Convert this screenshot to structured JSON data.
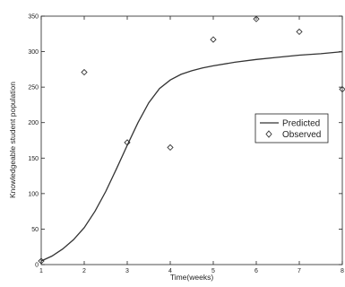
{
  "chart_data": {
    "type": "line",
    "title": "",
    "xlabel": "Time(weeks)",
    "ylabel": "Knowledgeable student population",
    "xlim": [
      1,
      8
    ],
    "ylim": [
      0,
      350
    ],
    "xticks": [
      "1",
      "2",
      "3",
      "4",
      "5",
      "6",
      "7",
      "8"
    ],
    "yticks": [
      "0",
      "50",
      "100",
      "150",
      "200",
      "250",
      "300",
      "350"
    ],
    "grid": false,
    "legend_position": "right",
    "series": [
      {
        "name": "Predicted",
        "style": "line",
        "color": "#333333",
        "x": [
          1,
          1.25,
          1.5,
          1.75,
          2,
          2.25,
          2.5,
          2.75,
          3,
          3.25,
          3.5,
          3.75,
          4,
          4.25,
          4.5,
          4.75,
          5,
          5.5,
          6,
          6.5,
          7,
          7.5,
          8
        ],
        "y": [
          5,
          12,
          22,
          35,
          52,
          75,
          103,
          135,
          168,
          200,
          228,
          248,
          260,
          268,
          273,
          277,
          280,
          285,
          289,
          292,
          295,
          297,
          300
        ]
      },
      {
        "name": "Observed",
        "style": "marker",
        "marker": "diamond",
        "color": "#333333",
        "x": [
          1,
          2,
          3,
          4,
          5,
          6,
          7,
          8
        ],
        "y": [
          5,
          271,
          172,
          165,
          317,
          346,
          328,
          247
        ]
      }
    ]
  }
}
